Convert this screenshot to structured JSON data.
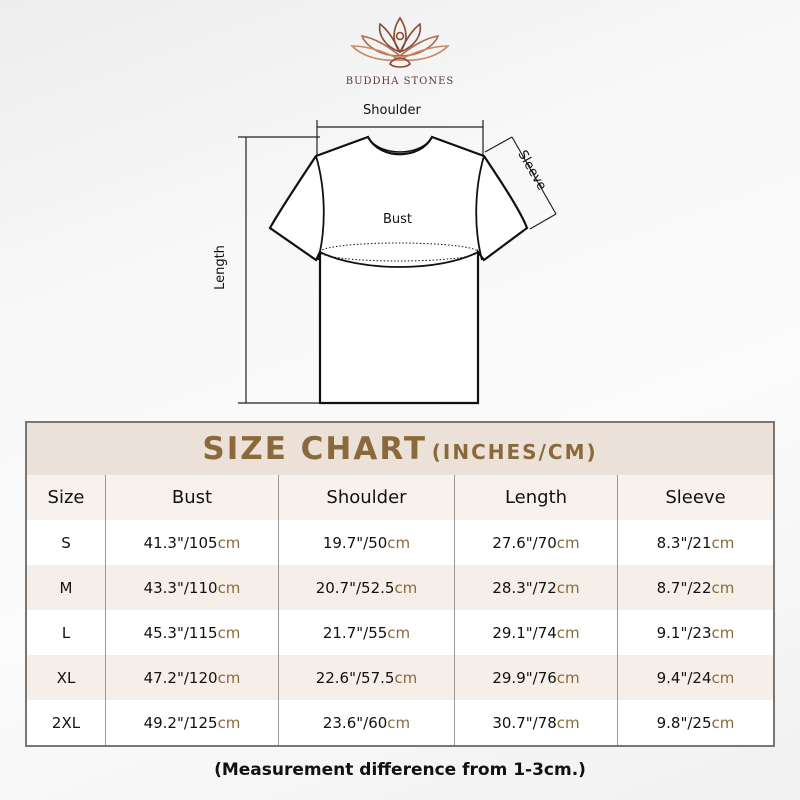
{
  "brand": {
    "name": "BUDDHA STONES",
    "logo_icon": "lotus-meditation-icon",
    "logo_color": "#8a4a36"
  },
  "diagram": {
    "shoulder": "Shoulder",
    "sleeve": "Sleeve",
    "bust": "Bust",
    "length": "Length"
  },
  "chart": {
    "title": "SIZE CHART",
    "subtitle": "(INCHES/CM)",
    "accent_color": "#8a6a3a",
    "headers": [
      "Size",
      "Bust",
      "Shoulder",
      "Length",
      "Sleeve"
    ],
    "rows": [
      {
        "size": "S",
        "cells": [
          [
            "41.3\"/105",
            "cm"
          ],
          [
            "19.7\"/50",
            "cm"
          ],
          [
            "27.6\"/70",
            "cm"
          ],
          [
            "8.3\"/21",
            "cm"
          ]
        ]
      },
      {
        "size": "M",
        "cells": [
          [
            "43.3\"/110",
            "cm"
          ],
          [
            "20.7\"/52.5",
            "cm"
          ],
          [
            "28.3\"/72",
            "cm"
          ],
          [
            "8.7\"/22",
            "cm"
          ]
        ]
      },
      {
        "size": "L",
        "cells": [
          [
            "45.3\"/115",
            "cm"
          ],
          [
            "21.7\"/55",
            "cm"
          ],
          [
            "29.1\"/74",
            "cm"
          ],
          [
            "9.1\"/23",
            "cm"
          ]
        ]
      },
      {
        "size": "XL",
        "cells": [
          [
            "47.2\"/120",
            "cm"
          ],
          [
            "22.6\"/57.5",
            "cm"
          ],
          [
            "29.9\"/76",
            "cm"
          ],
          [
            "9.4\"/24",
            "cm"
          ]
        ]
      },
      {
        "size": "2XL",
        "cells": [
          [
            "49.2\"/125",
            "cm"
          ],
          [
            "23.6\"/60",
            "cm"
          ],
          [
            "30.7\"/78",
            "cm"
          ],
          [
            "9.8\"/25",
            "cm"
          ]
        ]
      }
    ]
  },
  "footer": "(Measurement difference from 1-3cm.)"
}
